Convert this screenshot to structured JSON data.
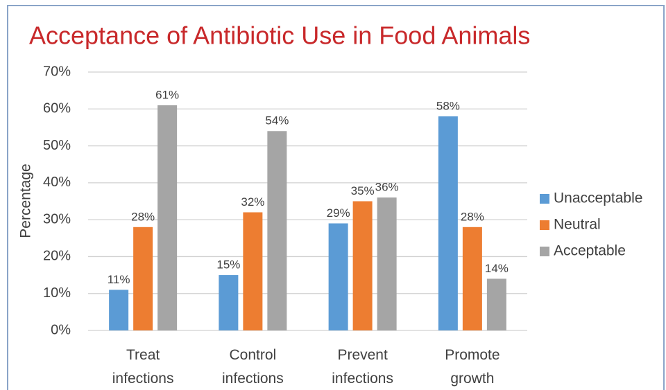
{
  "chart_data": {
    "type": "bar",
    "title": "Acceptance of Antibiotic Use in Food Animals",
    "y_label": "Percentage",
    "categories": [
      "Treat infections",
      "Control infections",
      "Prevent infections",
      "Promote growth"
    ],
    "series": [
      {
        "name": "Unacceptable",
        "color": "#5b9bd5",
        "values": [
          11,
          15,
          29,
          58
        ],
        "value_labels": [
          "11%",
          "15%",
          "29%",
          "58%"
        ]
      },
      {
        "name": "Neutral",
        "color": "#ed7d31",
        "values": [
          28,
          32,
          35,
          28
        ],
        "value_labels": [
          "28%",
          "32%",
          "35%",
          "28%"
        ]
      },
      {
        "name": "Acceptable",
        "color": "#a5a5a5",
        "values": [
          61,
          54,
          36,
          14
        ],
        "value_labels": [
          "61%",
          "54%",
          "36%",
          "14%"
        ]
      }
    ],
    "ylim": [
      0,
      70
    ],
    "yticks": [
      {
        "value": 0,
        "label": "0%"
      },
      {
        "value": 10,
        "label": "10%"
      },
      {
        "value": 20,
        "label": "20%"
      },
      {
        "value": 30,
        "label": "30%"
      },
      {
        "value": 40,
        "label": "40%"
      },
      {
        "value": 50,
        "label": "50%"
      },
      {
        "value": 60,
        "label": "60%"
      },
      {
        "value": 70,
        "label": "70%"
      }
    ],
    "grid": true,
    "legend": "right"
  }
}
